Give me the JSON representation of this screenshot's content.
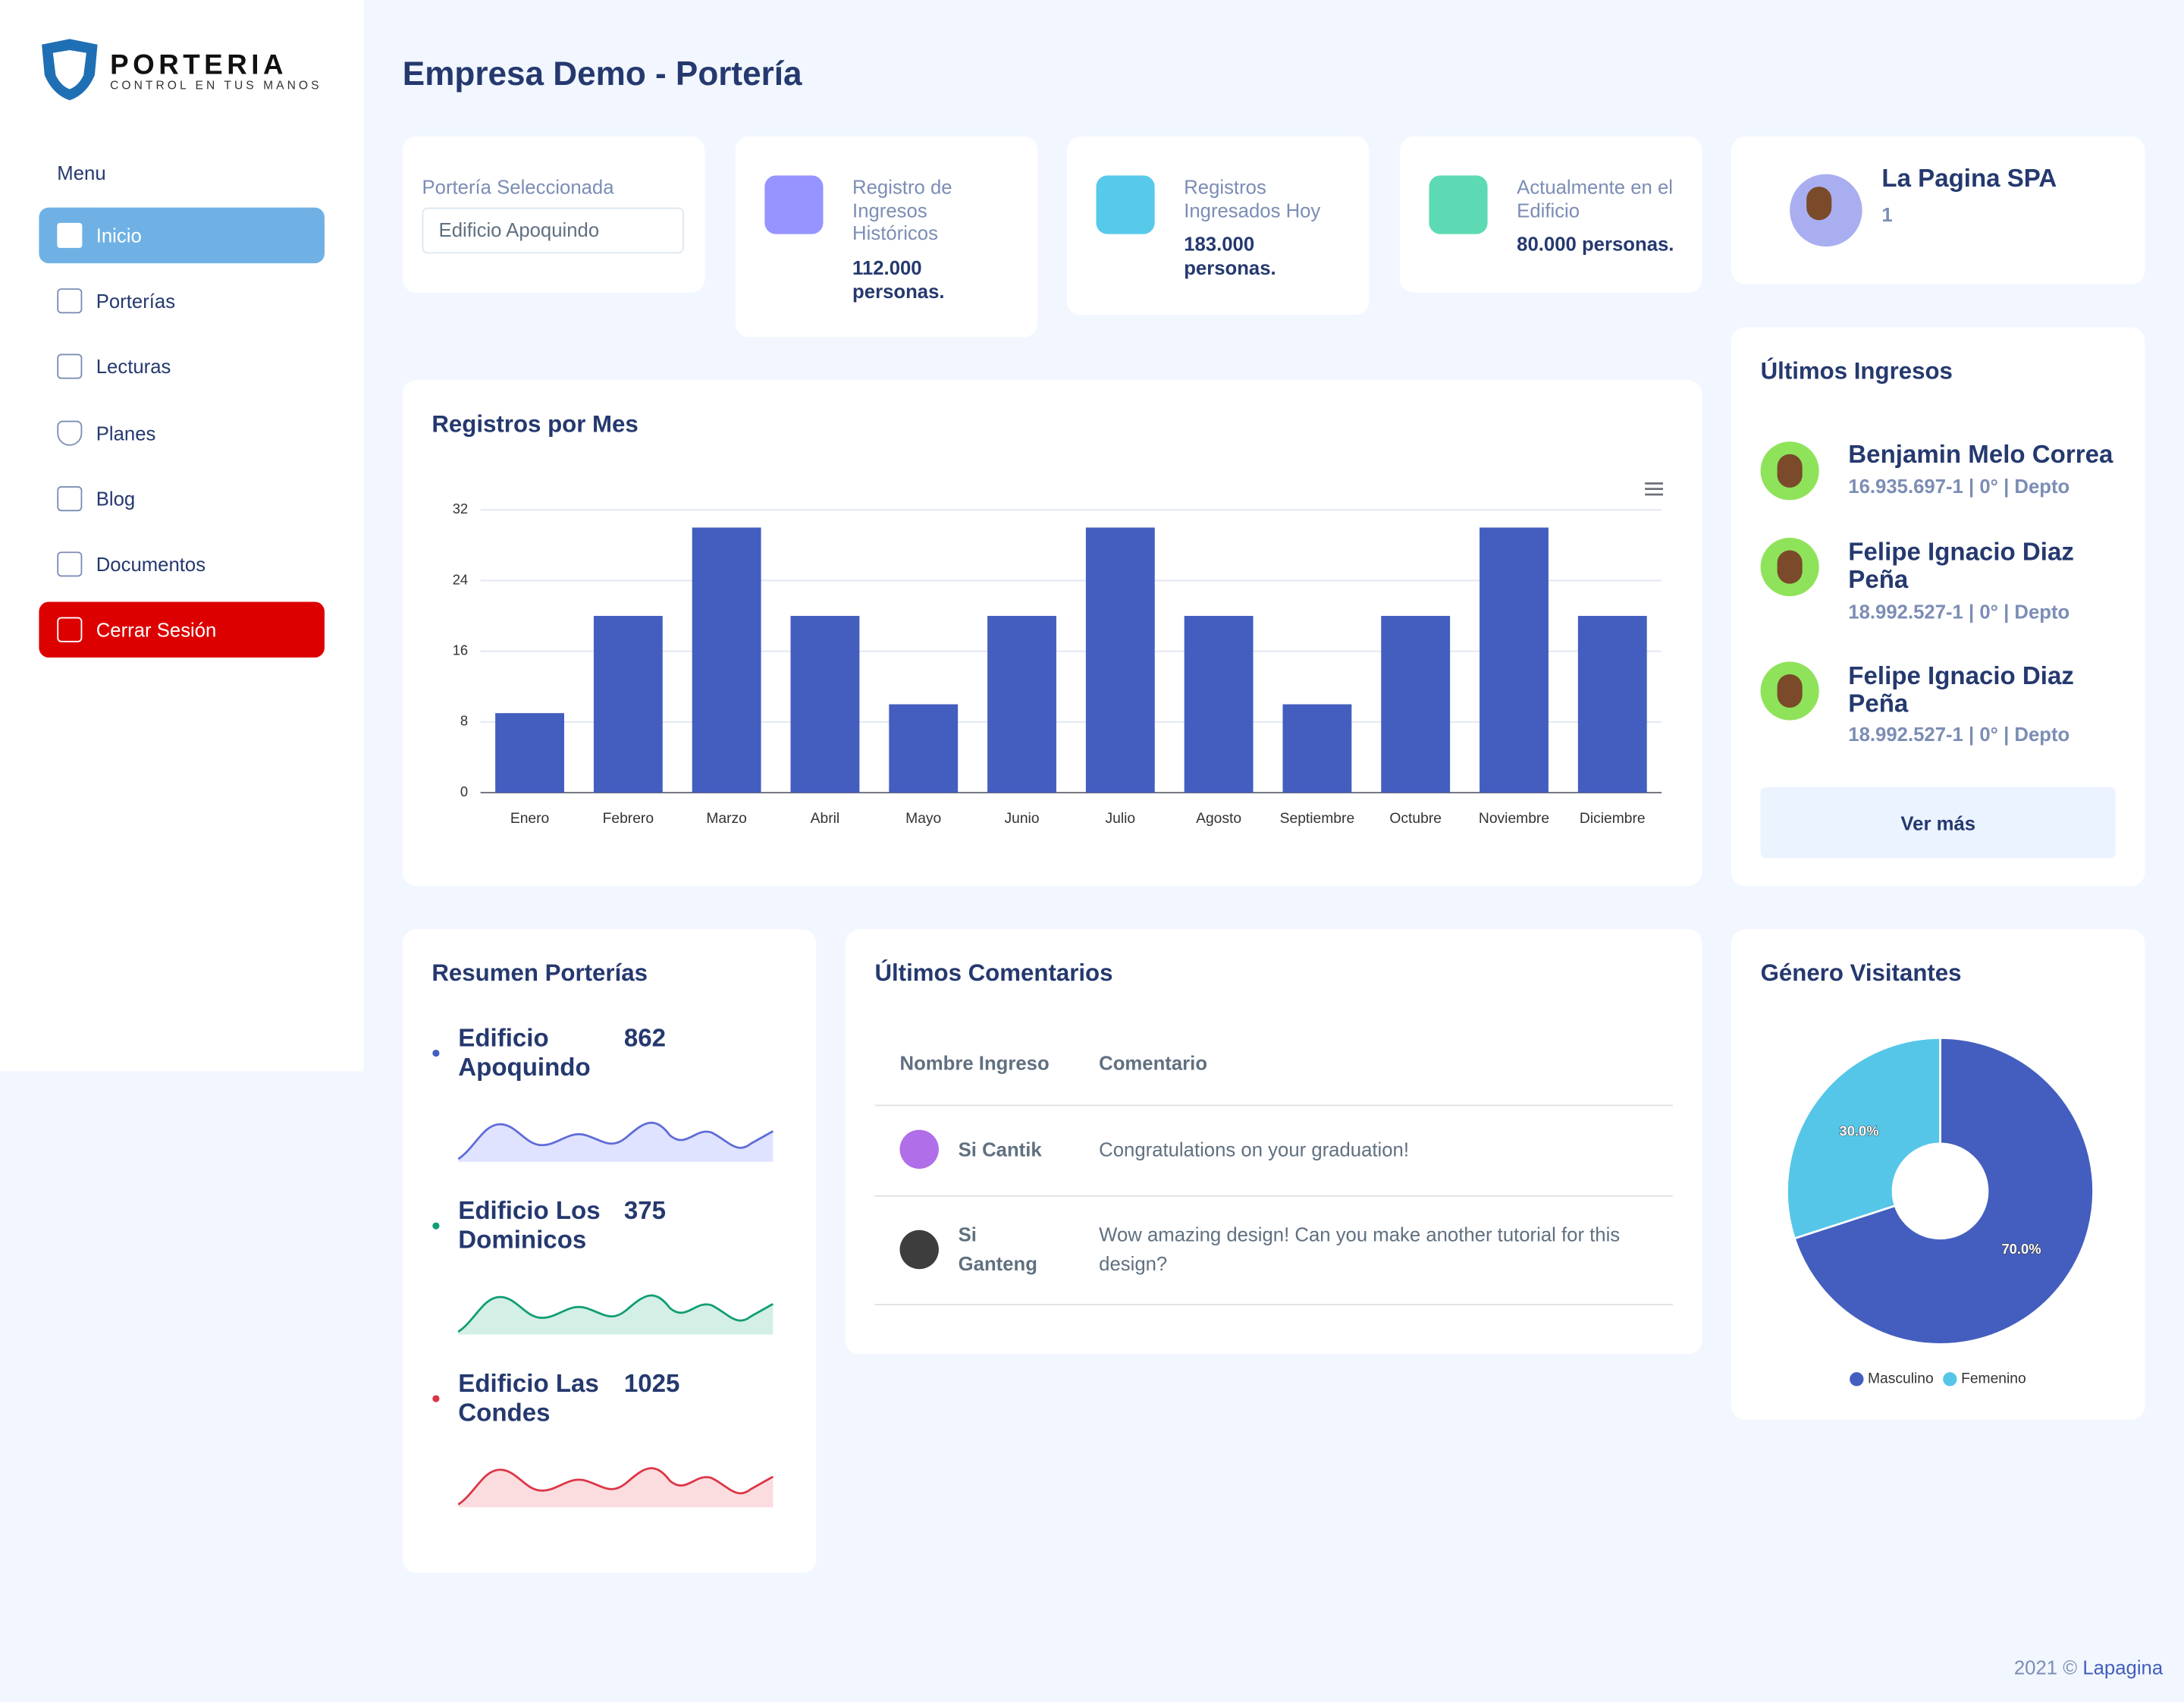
{
  "sidebar": {
    "logo": {
      "title": "PORTERIA",
      "tagline": "CONTROL EN TUS MANOS"
    },
    "menu_label": "Menu",
    "items": [
      "Inicio",
      "Porterías",
      "Lecturas",
      "Planes",
      "Blog",
      "Documentos"
    ],
    "logout": "Cerrar Sesión"
  },
  "header": {
    "title": "Empresa Demo - Portería"
  },
  "selector": {
    "label": "Portería Seleccionada",
    "value": "Edificio Apoquindo"
  },
  "stats": [
    {
      "label": "Registro de Ingresos Históricos",
      "value": "112.000 personas."
    },
    {
      "label": "Registros Ingresados Hoy",
      "value": "183.000 personas."
    },
    {
      "label": "Actualmente en el Edificio",
      "value": "80.000 personas."
    }
  ],
  "profile": {
    "name": "La Pagina SPA",
    "id": "1"
  },
  "latest_entries": {
    "title": "Últimos Ingresos",
    "items": [
      {
        "name": "Benjamin Melo Correa",
        "detail": "16.935.697-1 | 0° | Depto"
      },
      {
        "name": "Felipe Ignacio Diaz Peña",
        "detail": "18.992.527-1 | 0° | Depto"
      },
      {
        "name": "Felipe Ignacio Diaz Peña",
        "detail": "18.992.527-1 | 0° | Depto"
      }
    ],
    "button": "Ver más"
  },
  "summary": {
    "title": "Resumen Porterías",
    "items": [
      {
        "name": "Edificio Apoquindo",
        "value": 862
      },
      {
        "name": "Edificio Los Dominicos",
        "value": 375
      },
      {
        "name": "Edificio Las Condes",
        "value": 1025
      }
    ]
  },
  "comments": {
    "title": "Últimos Comentarios",
    "headers": [
      "Nombre Ingreso",
      "Comentario"
    ],
    "rows": [
      [
        "Si Cantik",
        "Congratulations on your graduation!"
      ],
      [
        "Si Ganteng",
        "Wow amazing design! Can you make another tutorial for this design?"
      ]
    ]
  },
  "footer": {
    "text": "2021 ©",
    "link": "Lapagina"
  },
  "chart_data": [
    {
      "type": "bar",
      "title": "Registros por Mes",
      "categories": [
        "Enero",
        "Febrero",
        "Marzo",
        "Abril",
        "Mayo",
        "Junio",
        "Julio",
        "Agosto",
        "Septiembre",
        "Octubre",
        "Noviembre",
        "Diciembre"
      ],
      "values": [
        9,
        20,
        30,
        20,
        10,
        20,
        30,
        20,
        10,
        20,
        30,
        20
      ],
      "color": "#435ebe",
      "ylim": [
        0,
        32
      ],
      "yticks": [
        0,
        8,
        16,
        24,
        32
      ],
      "grid": true
    },
    {
      "type": "pie",
      "title": "Género Visitantes",
      "categories": [
        "Masculino",
        "Femenino"
      ],
      "values": [
        70,
        30
      ],
      "value_labels": [
        "70.0%",
        "30.0%"
      ],
      "colors": [
        "#435ebe",
        "#55c6e8"
      ],
      "legend": "bottom"
    }
  ]
}
